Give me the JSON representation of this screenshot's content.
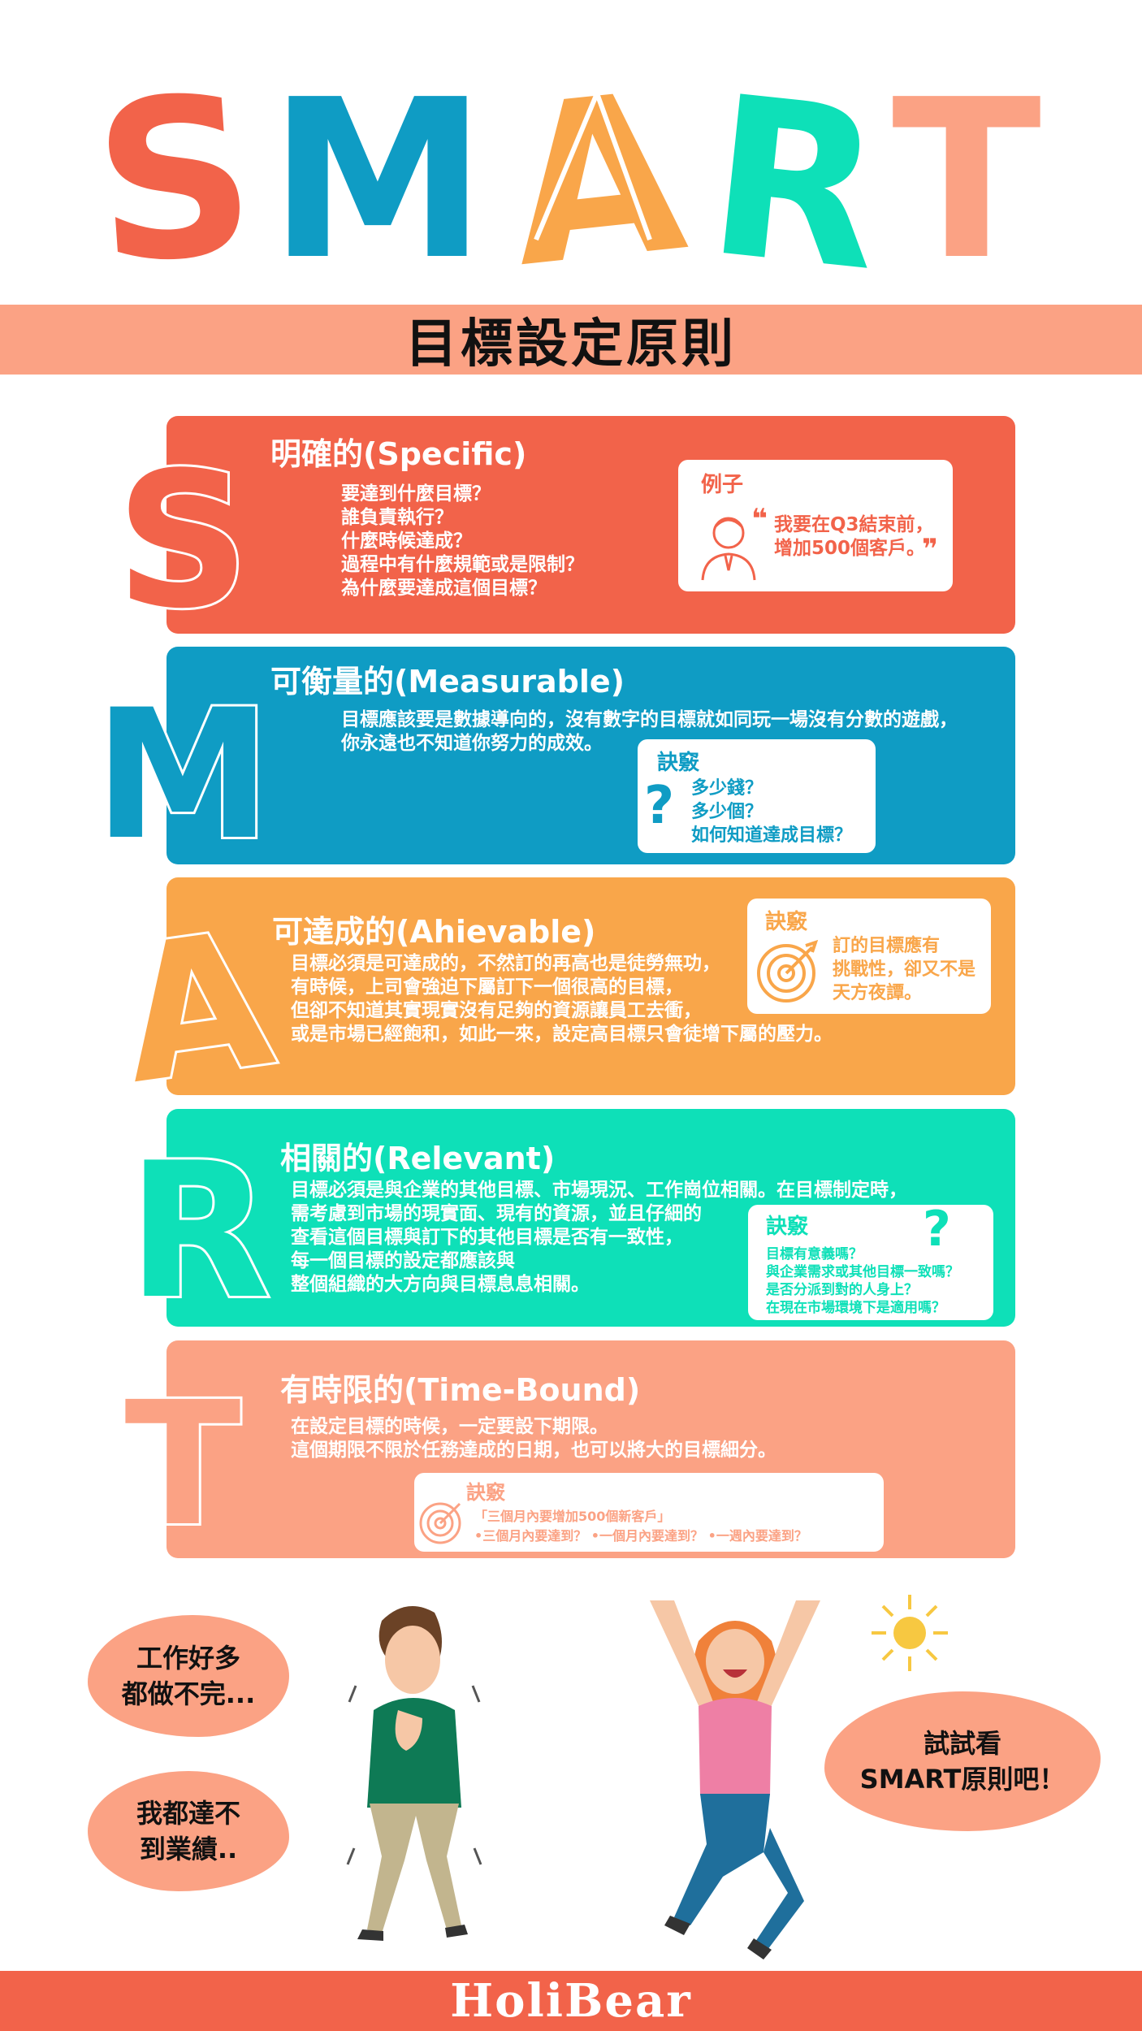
{
  "header": {
    "letters": [
      {
        "char": "S",
        "color": "#f2634a"
      },
      {
        "char": "M",
        "color": "#0f9cc4"
      },
      {
        "char": "A",
        "color": "#f9a64a"
      },
      {
        "char": "R",
        "color": "#0ee0b8"
      },
      {
        "char": "T",
        "color": "#fba284"
      }
    ],
    "subtitle": "目標設定原則"
  },
  "sections": {
    "s": {
      "letter": "S",
      "color": "#f2634a",
      "title": "明確的(Specific)",
      "lines": [
        "要達到什麼目標？",
        "誰負責執行？",
        "什麼時候達成？",
        "過程中有什麼規範或是限制？",
        "為什麼要達成這個目標？"
      ],
      "box_label": "例子",
      "quote_open": "❝",
      "quote_close": "❞",
      "quote_lines": [
        "我要在Q3結束前，",
        "增加500個客戶。"
      ],
      "icon": "businessman-icon"
    },
    "m": {
      "letter": "M",
      "color": "#0f9cc4",
      "title": "可衡量的(Measurable)",
      "lines": [
        "目標應該要是數據導向的，沒有數字的目標就如同玩一場沒有分數的遊戲，",
        "你永遠也不知道你努力的成效。"
      ],
      "box_label": "訣竅",
      "box_lines": [
        "多少錢？",
        "多少個？",
        "如何知道達成目標？"
      ],
      "icon": "question-mark-icon"
    },
    "a": {
      "letter": "A",
      "color": "#f9a64a",
      "title": "可達成的(Ahievable)",
      "lines": [
        "目標必須是可達成的，不然訂的再高也是徒勞無功，",
        "有時候，上司會強迫下屬訂下一個很高的目標，",
        "但卻不知道其實現實沒有足夠的資源讓員工去衝，",
        "或是市場已經飽和，如此一來，設定高目標只會徒增下屬的壓力。"
      ],
      "box_label": "訣竅",
      "box_lines": [
        "訂的目標應有",
        "挑戰性，卻又不是",
        "天方夜譚。"
      ],
      "icon": "target-icon"
    },
    "r": {
      "letter": "R",
      "color": "#0ee0b8",
      "title": "相關的(Relevant)",
      "lines": [
        "目標必須是與企業的其他目標、市場現況、工作崗位相關。在目標制定時，",
        "需考慮到市場的現實面、現有的資源，並且仔細的",
        "查看這個目標與訂下的其他目標是否有一致性，",
        "每一個目標的設定都應該與",
        "整個組織的大方向與目標息息相關。"
      ],
      "box_label": "訣竅",
      "box_lines": [
        "目標有意義嗎？",
        "與企業需求或其他目標一致嗎？",
        "是否分派到對的人身上？",
        "在現在市場環境下是適用嗎？"
      ],
      "icon": "question-mark-icon"
    },
    "t": {
      "letter": "T",
      "color": "#fba284",
      "title": "有時限的(Time-Bound)",
      "lines": [
        "在設定目標的時候，一定要設下期限。",
        "這個期限不限於任務達成的日期，也可以將大的目標細分。"
      ],
      "box_label": "訣竅",
      "box_lines": [
        "「三個月內要增加500個新客戶」",
        "•三個月內要達到？  •一個月內要達到？  •一週內要達到？"
      ],
      "icon": "target-icon"
    }
  },
  "bottom": {
    "bubble_1": [
      "工作好多",
      "都做不完..."
    ],
    "bubble_2": [
      "我都達不",
      "到業績.."
    ],
    "bubble_3": [
      "試試看",
      "SMART原則吧！"
    ]
  },
  "footer": {
    "brand": "HoliBear"
  }
}
